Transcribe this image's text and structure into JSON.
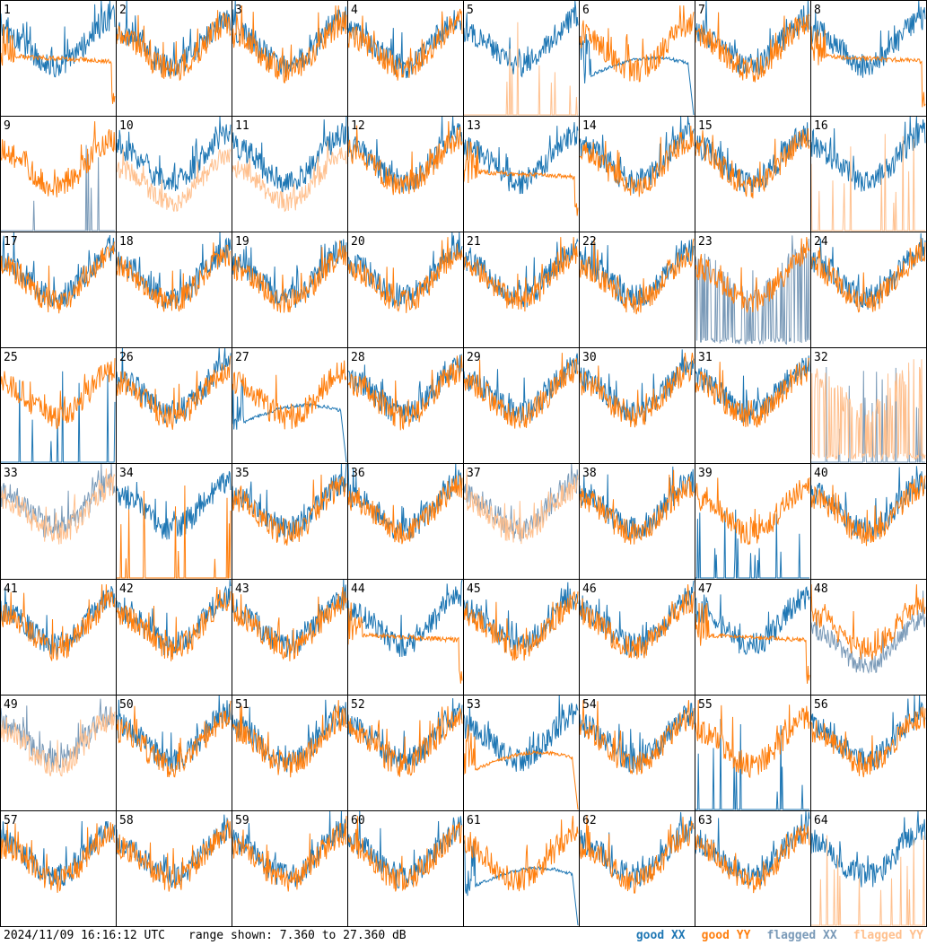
{
  "chart_data": {
    "type": "line",
    "panel_count": 64,
    "columns": 8,
    "rows": 8,
    "panel_labels": [
      "1",
      "2",
      "3",
      "4",
      "5",
      "6",
      "7",
      "8",
      "9",
      "10",
      "11",
      "12",
      "13",
      "14",
      "15",
      "16",
      "17",
      "18",
      "19",
      "20",
      "21",
      "22",
      "23",
      "24",
      "25",
      "26",
      "27",
      "28",
      "29",
      "30",
      "31",
      "32",
      "33",
      "34",
      "35",
      "36",
      "37",
      "38",
      "39",
      "40",
      "41",
      "42",
      "43",
      "44",
      "45",
      "46",
      "47",
      "48",
      "49",
      "50",
      "51",
      "52",
      "53",
      "54",
      "55",
      "56",
      "57",
      "58",
      "59",
      "60",
      "61",
      "62",
      "63",
      "64"
    ],
    "ylim": [
      7.36,
      27.36
    ],
    "unit": "dB",
    "series": [
      {
        "key": "good_xx",
        "name": "good XX",
        "color": "#1f77b4"
      },
      {
        "key": "good_yy",
        "name": "good YY",
        "color": "#ff7f0e"
      },
      {
        "key": "flagged_xx",
        "name": "flagged XX",
        "color": "#7a9ab8"
      },
      {
        "key": "flagged_yy",
        "name": "flagged YY",
        "color": "#ffc08e"
      }
    ],
    "panel_styles": {
      "1": {
        "xx": "normal",
        "yy": "plateau"
      },
      "5": {
        "xx": "normal",
        "yy": "spikes",
        "yy_flag": true
      },
      "6": {
        "xx": "curve",
        "yy": "normal"
      },
      "8": {
        "xx": "normal",
        "yy": "plateau"
      },
      "9": {
        "xx": "spikes",
        "yy": "normal",
        "xx_flag": true
      },
      "10": {
        "xx": "normal",
        "yy": "low",
        "xx_flag": false,
        "yy_flag": true
      },
      "11": {
        "xx": "normal",
        "yy": "low",
        "yy_flag": true
      },
      "13": {
        "xx": "normal",
        "yy": "plateau"
      },
      "16": {
        "xx": "normal",
        "yy": "spikes",
        "yy_flag": true
      },
      "23": {
        "xx": "dropouts",
        "yy": "normal",
        "xx_flag": true
      },
      "25": {
        "xx": "spikes",
        "yy": "normal"
      },
      "27": {
        "xx": "curve",
        "yy": "normal"
      },
      "32": {
        "xx": "spikes",
        "yy": "dropouts",
        "xx_flag": true,
        "yy_flag": true
      },
      "33": {
        "xx": "normal",
        "yy": "normal",
        "xx_flag": true,
        "yy_flag": true
      },
      "34": {
        "xx": "normal",
        "yy": "spikes"
      },
      "37": {
        "xx": "normal",
        "yy": "normal",
        "xx_flag": true,
        "yy_flag": true
      },
      "39": {
        "xx": "spikes",
        "yy": "normal"
      },
      "44": {
        "xx": "normal",
        "yy": "plateau"
      },
      "47": {
        "xx": "normal",
        "yy": "plateau"
      },
      "48": {
        "xx": "low",
        "yy": "normal",
        "xx_flag": true
      },
      "49": {
        "xx": "normal",
        "yy": "normal",
        "xx_flag": true,
        "yy_flag": true
      },
      "53": {
        "xx": "normal",
        "yy": "curve"
      },
      "55": {
        "xx": "spikes",
        "yy": "normal"
      },
      "61": {
        "xx": "curve",
        "yy": "normal"
      },
      "64": {
        "xx": "normal",
        "yy": "spikes",
        "yy_flag": true
      }
    }
  },
  "footer": {
    "timestamp": "2024/11/09 16:16:12 UTC",
    "range_text": "range shown: 7.360 to 27.360 dB"
  },
  "legend": {
    "good_xx": "good XX",
    "good_yy": "good YY",
    "flagged_xx": "flagged XX",
    "flagged_yy": "flagged YY"
  },
  "colors": {
    "good_xx": "#1f77b4",
    "good_yy": "#ff7f0e",
    "flagged_xx": "#7a9ab8",
    "flagged_yy": "#ffc08e"
  }
}
